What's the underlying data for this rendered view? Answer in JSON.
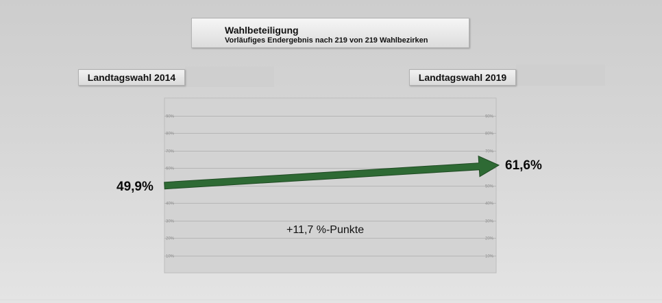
{
  "header": {
    "title": "Wahlbeteiligung",
    "subtitle": "Vorläufiges Endergebnis nach 219 von 219 Wahlbezirken"
  },
  "left_label": "Landtagswahl 2014",
  "right_label": "Landtagswahl 2019",
  "left_value_text": "49,9%",
  "right_value_text": "61,6%",
  "difference_text": "+11,7 %-Punkte",
  "colors": {
    "arrow": "#2e6a34",
    "arrow_edge": "#1f4a23",
    "plot_bg": "#d3d3d3",
    "gridline": "#ababab",
    "tick_text": "#8c8c8c"
  },
  "chart_data": {
    "type": "line",
    "x": [
      "Landtagswahl 2014",
      "Landtagswahl 2019"
    ],
    "series": [
      {
        "values": [
          49.9,
          61.6
        ]
      }
    ],
    "ylim": [
      0,
      100
    ],
    "y_ticks": [
      10,
      20,
      30,
      40,
      50,
      60,
      70,
      80,
      90
    ],
    "y_tick_labels": [
      "10%",
      "20%",
      "30%",
      "40%",
      "50%",
      "60%",
      "70%",
      "80%",
      "90%"
    ],
    "grid": true,
    "annotations": [
      "+11,7 %-Punkte"
    ]
  }
}
